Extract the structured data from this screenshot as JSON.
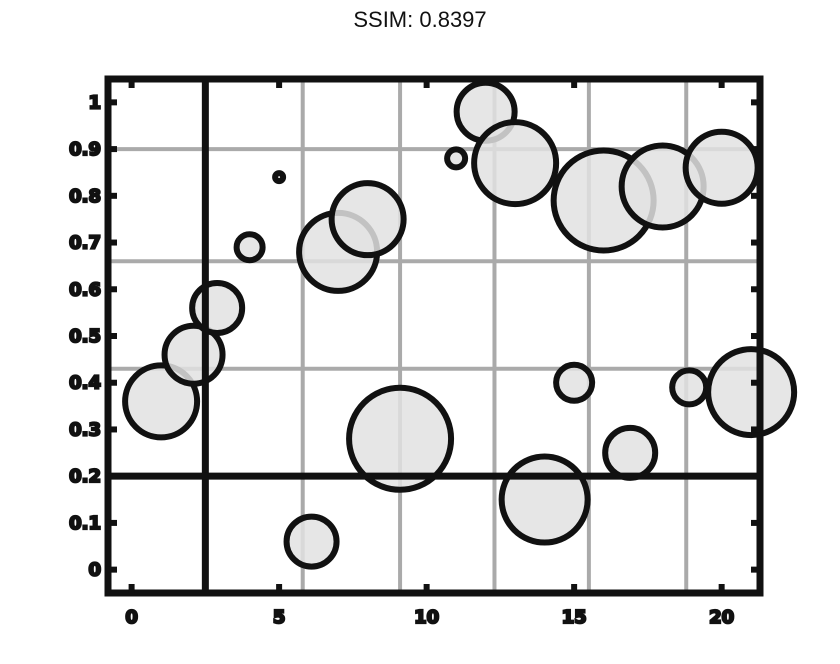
{
  "title": "SSIM: 0.8397",
  "chart_data": {
    "type": "scatter",
    "title": "SSIM: 0.8397",
    "xlabel": "",
    "ylabel": "",
    "xlim": [
      -0.8,
      21.3
    ],
    "ylim": [
      -0.05,
      1.05
    ],
    "x_ticks": [
      {
        "value": 0,
        "label": "0"
      },
      {
        "value": 5,
        "label": "5"
      },
      {
        "value": 10,
        "label": "10"
      },
      {
        "value": 15,
        "label": "15"
      },
      {
        "value": 20,
        "label": "20"
      }
    ],
    "y_ticks": [
      {
        "value": 0,
        "label": "0"
      },
      {
        "value": 0.1,
        "label": "0.1"
      },
      {
        "value": 0.2,
        "label": "0.2"
      },
      {
        "value": 0.3,
        "label": "0.3"
      },
      {
        "value": 0.4,
        "label": "0.4"
      },
      {
        "value": 0.5,
        "label": "0.5"
      },
      {
        "value": 0.6,
        "label": "0.6"
      },
      {
        "value": 0.7,
        "label": "0.7"
      },
      {
        "value": 0.8,
        "label": "0.8"
      },
      {
        "value": 0.9,
        "label": "0.9"
      },
      {
        "value": 1,
        "label": "1"
      }
    ],
    "x_grid": [
      2.5,
      5.8,
      9.1,
      12.3,
      15.5,
      18.8
    ],
    "y_grid": [
      0.43,
      0.66,
      0.9
    ],
    "ref_lines": {
      "vertical_x": 2.5,
      "horizontal_y": 0.2
    },
    "grid": true,
    "legend": "none",
    "marker_fill": "#e2e2e2",
    "marker_edge": "#111111",
    "points": [
      {
        "x": 1.0,
        "y": 0.36,
        "size": 36
      },
      {
        "x": 2.1,
        "y": 0.46,
        "size": 29
      },
      {
        "x": 2.9,
        "y": 0.56,
        "size": 25
      },
      {
        "x": 4.0,
        "y": 0.69,
        "size": 13
      },
      {
        "x": 5.0,
        "y": 0.84,
        "size": 4
      },
      {
        "x": 6.1,
        "y": 0.06,
        "size": 25
      },
      {
        "x": 7.0,
        "y": 0.68,
        "size": 39
      },
      {
        "x": 8.0,
        "y": 0.75,
        "size": 36
      },
      {
        "x": 9.1,
        "y": 0.28,
        "size": 51
      },
      {
        "x": 11.0,
        "y": 0.88,
        "size": 9
      },
      {
        "x": 12.0,
        "y": 0.98,
        "size": 29
      },
      {
        "x": 13.0,
        "y": 0.87,
        "size": 41
      },
      {
        "x": 14.0,
        "y": 0.15,
        "size": 43
      },
      {
        "x": 15.0,
        "y": 0.4,
        "size": 18
      },
      {
        "x": 16.0,
        "y": 0.79,
        "size": 50
      },
      {
        "x": 16.9,
        "y": 0.25,
        "size": 25
      },
      {
        "x": 18.0,
        "y": 0.82,
        "size": 41
      },
      {
        "x": 18.9,
        "y": 0.39,
        "size": 17
      },
      {
        "x": 20.0,
        "y": 0.86,
        "size": 36
      },
      {
        "x": 21.0,
        "y": 0.38,
        "size": 43
      }
    ]
  }
}
